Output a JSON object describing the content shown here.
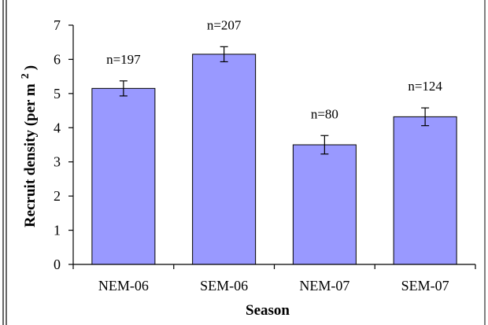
{
  "chart_data": {
    "type": "bar",
    "categories": [
      "NEM-06",
      "SEM-06",
      "NEM-07",
      "SEM-07"
    ],
    "values": [
      5.15,
      6.15,
      3.5,
      4.32
    ],
    "errors": [
      0.22,
      0.22,
      0.27,
      0.26
    ],
    "data_labels": [
      "n=197",
      "n=207",
      "n=80",
      "n=124"
    ],
    "xlabel": "Season",
    "ylabel": "Recruit density (per m",
    "ylabel_superscript": "2",
    "ylabel_close": ")",
    "ylim": [
      0,
      7
    ],
    "yticks": [
      "0",
      "1",
      "2",
      "3",
      "4",
      "5",
      "6",
      "7"
    ],
    "grid": false,
    "bar_color": "#9999ff",
    "bar_edge_color": "#000000"
  }
}
